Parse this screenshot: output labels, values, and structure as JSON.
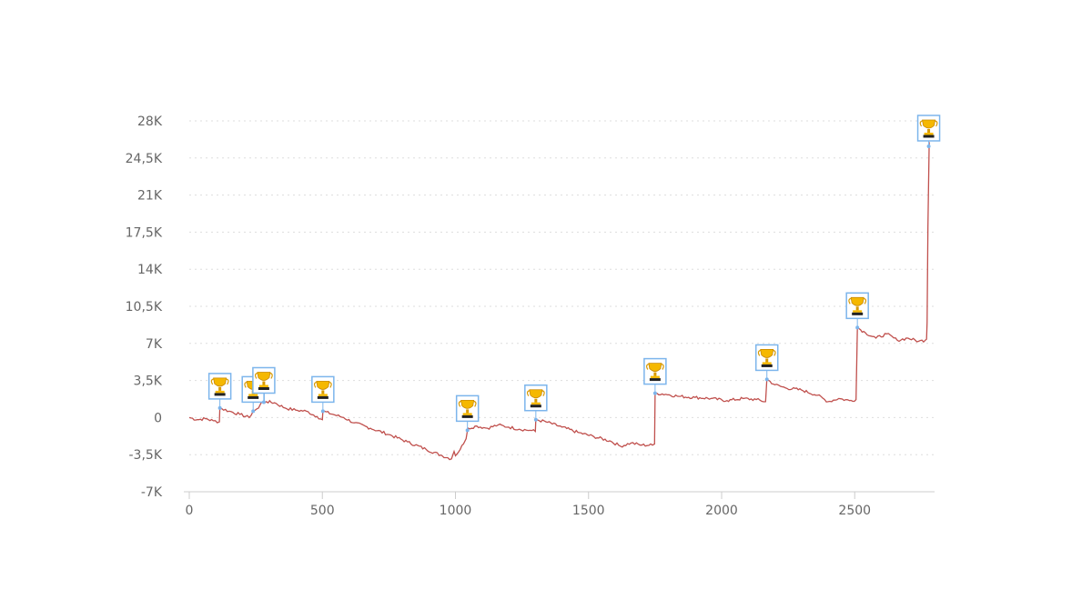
{
  "chart_data": {
    "type": "line",
    "title": "",
    "xlabel": "",
    "ylabel": "",
    "xlim": [
      0,
      2800
    ],
    "ylim": [
      -7000,
      28000
    ],
    "x_ticks": [
      0,
      500,
      1000,
      1500,
      2000,
      2500
    ],
    "x_tick_labels": [
      "0",
      "500",
      "1000",
      "1500",
      "2000",
      "2500"
    ],
    "y_ticks": [
      -7000,
      -3500,
      0,
      3500,
      7000,
      10500,
      14000,
      17500,
      21000,
      24500,
      28000
    ],
    "y_tick_labels": [
      "-7K",
      "-3,5K",
      "0",
      "3,5K",
      "7K",
      "10,5K",
      "14K",
      "17,5K",
      "21K",
      "24,5K",
      "28K"
    ],
    "grid": true,
    "line_color": "#c0504d",
    "marker_color": "#7cb5ec",
    "marker_icon": "trophy-icon",
    "series": [
      {
        "x": [
          0,
          30,
          60,
          90,
          113,
          115,
          150,
          190,
          225,
          240,
          260,
          270,
          290,
          320,
          360,
          400,
          440,
          480,
          500,
          502,
          540,
          580,
          620,
          680,
          750,
          820,
          890,
          950,
          985,
          995,
          1000,
          1030,
          1040,
          1045,
          1048,
          1080,
          1120,
          1160,
          1200,
          1240,
          1280,
          1300,
          1302,
          1340,
          1400,
          1460,
          1520,
          1580,
          1620,
          1660,
          1700,
          1740,
          1748,
          1750,
          1790,
          1840,
          1900,
          1960,
          2020,
          2080,
          2130,
          2165,
          2170,
          2200,
          2240,
          2300,
          2360,
          2400,
          2440,
          2480,
          2505,
          2510,
          2540,
          2580,
          2620,
          2660,
          2700,
          2740,
          2765,
          2770,
          2772,
          2775,
          2780
        ],
        "y": [
          0,
          -200,
          -100,
          -300,
          -400,
          900,
          600,
          300,
          0,
          600,
          900,
          1400,
          1500,
          1400,
          900,
          700,
          600,
          100,
          -200,
          600,
          300,
          0,
          -500,
          -1000,
          -1600,
          -2300,
          -3000,
          -3600,
          -3900,
          -3200,
          -3600,
          -2500,
          -2000,
          -1200,
          -1000,
          -800,
          -1000,
          -700,
          -900,
          -1100,
          -1200,
          -1300,
          -200,
          -400,
          -900,
          -1400,
          -1800,
          -2200,
          -2700,
          -2400,
          -2600,
          -2600,
          -2500,
          2300,
          2200,
          2000,
          1900,
          1800,
          1600,
          1800,
          1700,
          1500,
          3600,
          3100,
          2800,
          2600,
          2100,
          1500,
          1800,
          1600,
          1700,
          8500,
          8000,
          7500,
          7900,
          7300,
          7500,
          7200,
          7300,
          7400,
          9000,
          18000,
          26000
        ]
      }
    ],
    "annotations": [
      {
        "x": 115,
        "y": 900
      },
      {
        "x": 240,
        "y": 600
      },
      {
        "x": 280,
        "y": 1450
      },
      {
        "x": 502,
        "y": 600
      },
      {
        "x": 1045,
        "y": -1200
      },
      {
        "x": 1302,
        "y": -200
      },
      {
        "x": 1750,
        "y": 2300
      },
      {
        "x": 2170,
        "y": 3600
      },
      {
        "x": 2510,
        "y": 8500
      },
      {
        "x": 2778,
        "y": 25600
      }
    ]
  }
}
